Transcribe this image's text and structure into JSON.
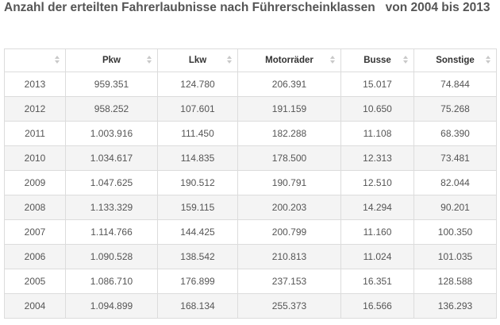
{
  "title": "Anzahl der erteilten Fahrerlaubnisse nach Führerscheinklassen   von 2004 bis 2013",
  "table": {
    "columns": [
      "",
      "Pkw",
      "Lkw",
      "Motorräder",
      "Busse",
      "Sonstige"
    ],
    "rows": [
      [
        "2013",
        "959.351",
        "124.780",
        "206.391",
        "15.017",
        "74.844"
      ],
      [
        "2012",
        "958.252",
        "107.601",
        "191.159",
        "10.650",
        "75.268"
      ],
      [
        "2011",
        "1.003.916",
        "111.450",
        "182.288",
        "11.108",
        "68.390"
      ],
      [
        "2010",
        "1.034.617",
        "114.835",
        "178.500",
        "12.313",
        "73.481"
      ],
      [
        "2009",
        "1.047.625",
        "190.512",
        "190.791",
        "12.510",
        "82.044"
      ],
      [
        "2008",
        "1.133.329",
        "159.115",
        "200.203",
        "14.294",
        "90.201"
      ],
      [
        "2007",
        "1.114.766",
        "144.425",
        "200.799",
        "11.160",
        "100.350"
      ],
      [
        "2006",
        "1.090.528",
        "138.542",
        "210.813",
        "11.024",
        "101.035"
      ],
      [
        "2005",
        "1.086.710",
        "176.899",
        "237.153",
        "16.351",
        "128.588"
      ],
      [
        "2004",
        "1.094.899",
        "168.134",
        "255.373",
        "16.566",
        "136.293"
      ]
    ]
  },
  "icons": {
    "sort": "sort-arrows-icon"
  }
}
